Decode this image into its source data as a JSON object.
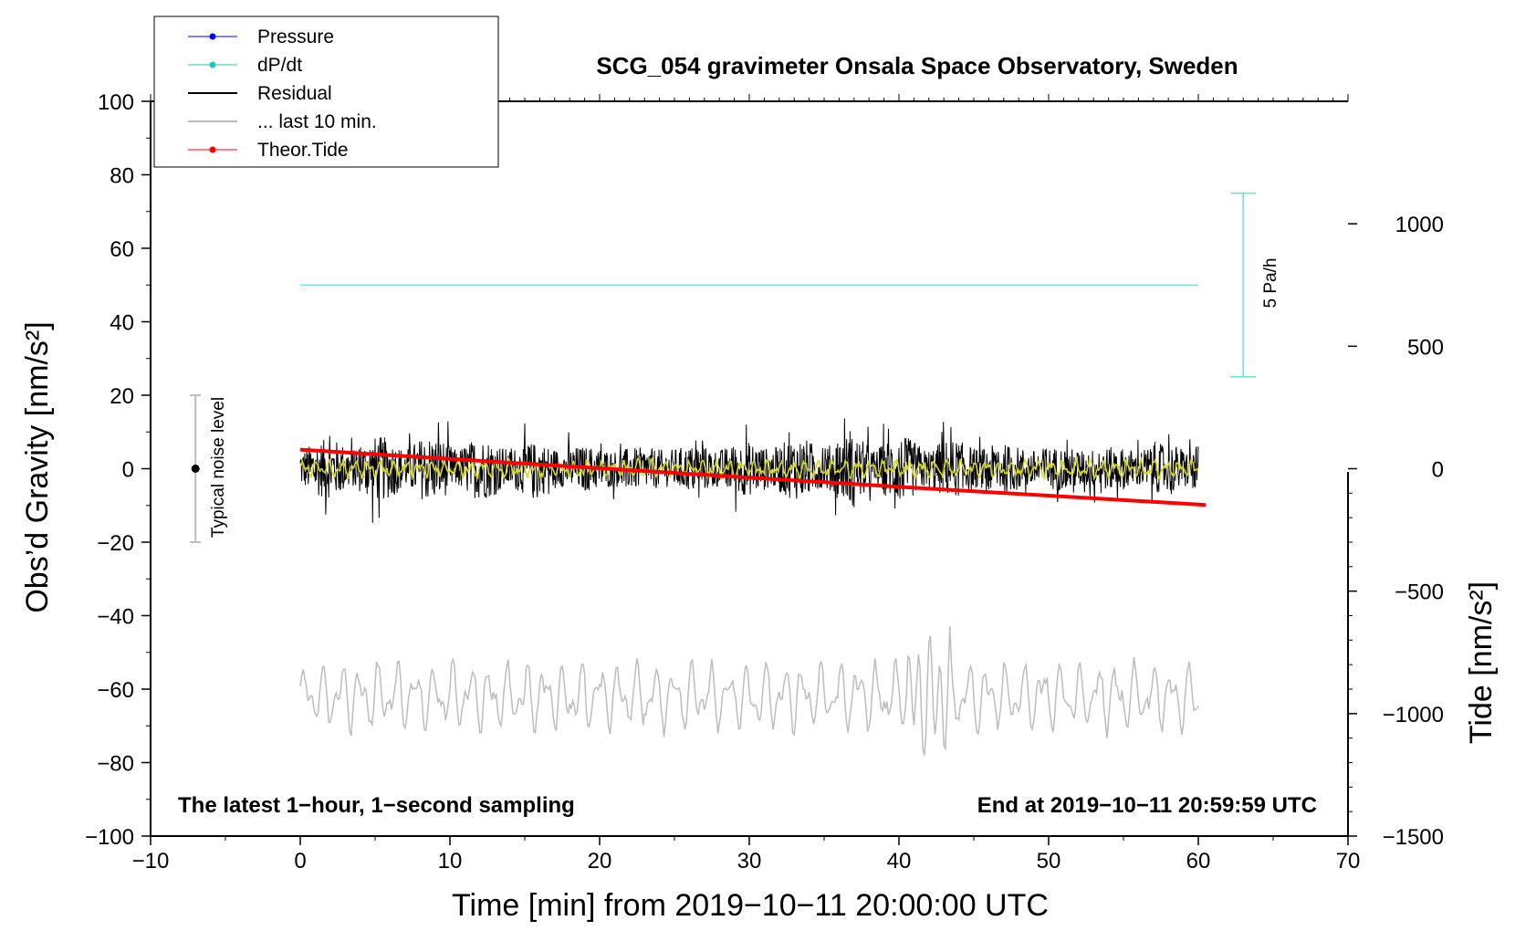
{
  "chart_data": {
    "type": "line",
    "title": "SCG_054 gravimeter Onsala Space Observatory, Sweden",
    "xlabel": "Time [min] from 2019−10−11 20:00:00 UTC",
    "ylabel_left": "Obs’d Gravity [nm/s²]",
    "ylabel_right": "Tide [nm/s²]",
    "xlim": [
      -10,
      70
    ],
    "ylim_left": [
      -100,
      100
    ],
    "ylim_right": [
      -1500,
      1500
    ],
    "x_ticks": [
      -10,
      0,
      10,
      20,
      30,
      40,
      50,
      60,
      70
    ],
    "x_tick_labels": [
      "−10",
      "0",
      "10",
      "20",
      "30",
      "40",
      "50",
      "60",
      "70"
    ],
    "y_left_ticks": [
      100,
      80,
      60,
      40,
      20,
      0,
      -20,
      -40,
      -60,
      -80,
      -100
    ],
    "y_left_tick_labels": [
      "100",
      "80",
      "60",
      "40",
      "20",
      "0",
      "−20",
      "−40",
      "−60",
      "−80",
      "−100"
    ],
    "y_right_ticks": [
      1000,
      500,
      0,
      -500,
      -1000,
      -1500
    ],
    "y_right_tick_labels": [
      "1000",
      "500",
      "0",
      "−500",
      "−1000",
      "−1500"
    ],
    "legend": {
      "placement": "top-left",
      "entries": [
        {
          "label": "Pressure",
          "color": "#0000ff",
          "marker": true
        },
        {
          "label": "dP/dt",
          "color": "#22c4c4",
          "marker": true
        },
        {
          "label": "Residual",
          "color": "#000000",
          "marker": false
        },
        {
          "label": "... last 10 min.",
          "color": "#bdbdbd",
          "marker": false
        },
        {
          "label": "Theor.Tide",
          "color": "#ff0000",
          "marker": true
        }
      ]
    },
    "series": [
      {
        "name": "dP/dt",
        "color": "#66dede",
        "axis": "left",
        "x": [
          0,
          60
        ],
        "y": [
          50,
          50
        ]
      },
      {
        "name": "Residual",
        "color": "#000000",
        "axis": "left",
        "x_range": [
          0,
          60
        ],
        "amplitude_nm_s2": 20,
        "approx_range": [
          -19,
          20
        ]
      },
      {
        "name": "Residual smoothed",
        "color": "#d6d62a",
        "axis": "left",
        "x_range": [
          0,
          60
        ],
        "approx_range": [
          -3,
          3
        ]
      },
      {
        "name": "... last 10 min.",
        "color": "#bdbdbd",
        "axis": "left",
        "x_range": [
          0,
          60
        ],
        "offset": -62,
        "approx_range": [
          -78,
          -42
        ]
      },
      {
        "name": "Theor.Tide",
        "color": "#ff0000",
        "axis": "right",
        "x": [
          0,
          10,
          20,
          30,
          40,
          50,
          60.5
        ],
        "y": [
          78,
          40,
          2,
          -36,
          -74,
          -110,
          -148
        ]
      }
    ],
    "scale_bar": {
      "label": "5 Pa/h",
      "x": 63,
      "y_top": 75,
      "y_bottom": 25,
      "color": "#66dede"
    },
    "noise_bar": {
      "label": "Typical noise level",
      "x": -7,
      "y_top": 20,
      "y_bottom": -20,
      "center": 0,
      "color": "#bdbdbd"
    },
    "annotations": {
      "bottom_left": "The latest 1−hour, 1−second sampling",
      "bottom_right": "End at 2019−10−11 20:59:59 UTC"
    }
  }
}
